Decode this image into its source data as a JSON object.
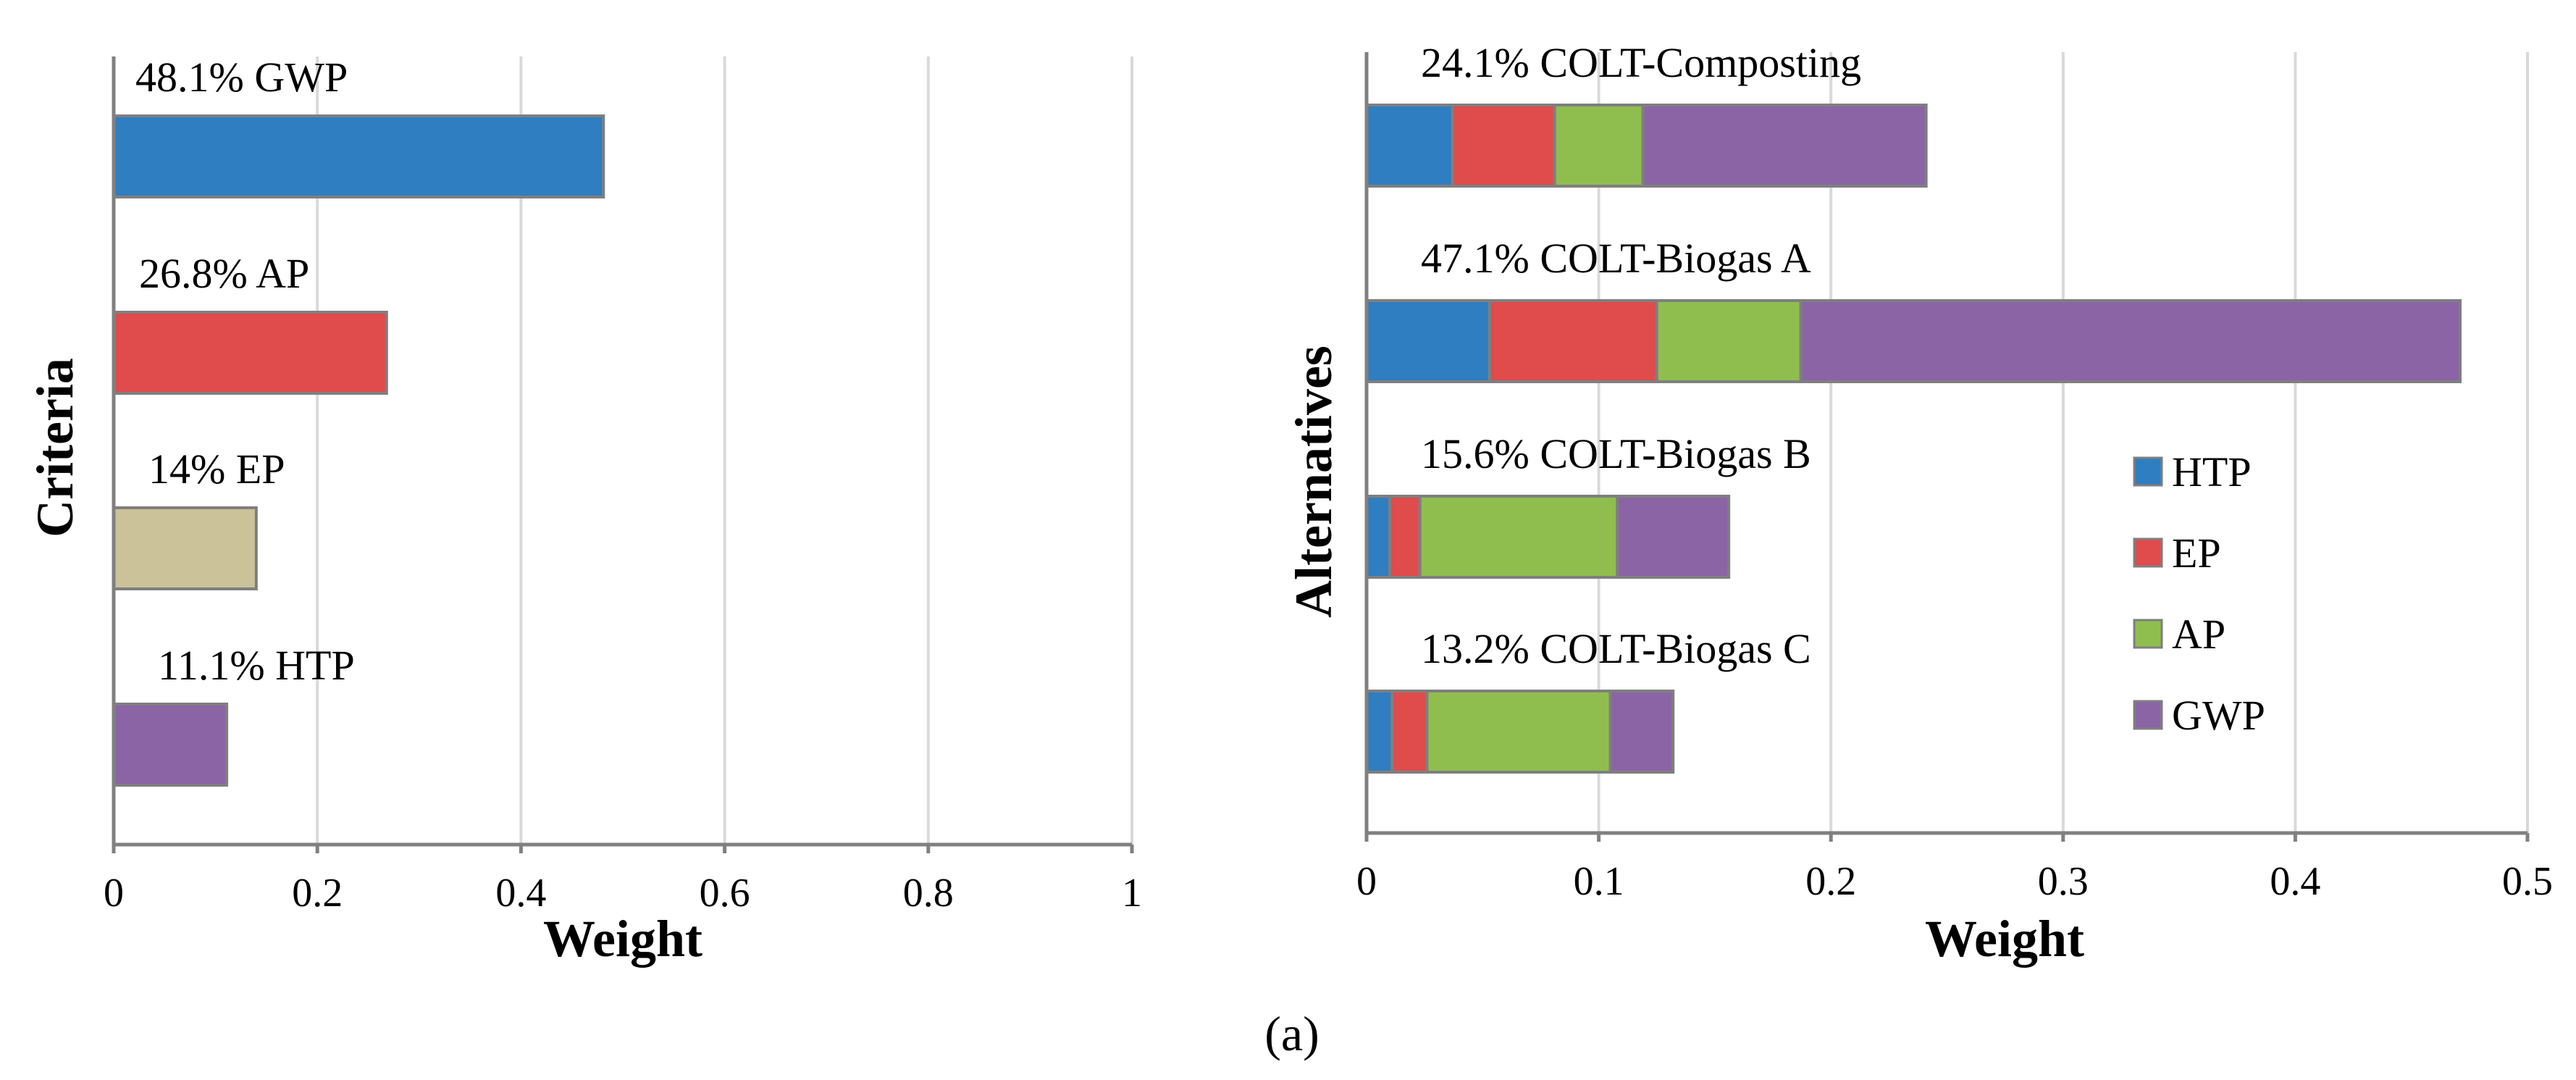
{
  "chart_data": [
    {
      "type": "bar",
      "orientation": "horizontal",
      "ylabel": "Criteria",
      "xlabel": "Weight",
      "xlim": [
        0,
        1
      ],
      "xticks": [
        "0",
        "0.2",
        "0.4",
        "0.6",
        "0.8",
        "1"
      ],
      "xtick_values": [
        0,
        0.2,
        0.4,
        0.6,
        0.8,
        1
      ],
      "grid": true,
      "categories": [
        "GWP",
        "AP",
        "EP",
        "HTP"
      ],
      "values": [
        0.481,
        0.268,
        0.14,
        0.111
      ],
      "colors": [
        "#2E7EC1",
        "#E04B4C",
        "#CBC299",
        "#8B64A6"
      ],
      "labels": [
        "48.1% GWP",
        "26.8% AP",
        "14% EP",
        "11.1% HTP"
      ]
    },
    {
      "type": "bar",
      "orientation": "horizontal",
      "stacked": true,
      "ylabel": "Alternatives",
      "xlabel": "Weight",
      "xlim": [
        0,
        0.5
      ],
      "xticks": [
        "0",
        "0.1",
        "0.2",
        "0.3",
        "0.4",
        "0.5"
      ],
      "xtick_values": [
        0,
        0.1,
        0.2,
        0.3,
        0.4,
        0.5
      ],
      "grid": true,
      "legend_position": "right",
      "categories": [
        "COLT-Composting",
        "COLT-Biogas A",
        "COLT-Biogas B",
        "COLT-Biogas C"
      ],
      "labels": [
        "24.1% COLT-Composting",
        "47.1% COLT-Biogas A",
        "15.6% COLT-Biogas B",
        "13.2% COLT-Biogas C"
      ],
      "series": [
        {
          "name": "HTP",
          "color": "#2E7EC1",
          "values": [
            0.037,
            0.053,
            0.01,
            0.011
          ]
        },
        {
          "name": "EP",
          "color": "#E04B4C",
          "values": [
            0.044,
            0.072,
            0.013,
            0.015
          ]
        },
        {
          "name": "AP",
          "color": "#8FBE4F",
          "values": [
            0.038,
            0.062,
            0.085,
            0.079
          ]
        },
        {
          "name": "GWP",
          "color": "#8B64A6",
          "values": [
            0.122,
            0.284,
            0.048,
            0.027
          ]
        }
      ]
    }
  ],
  "caption": "(a)",
  "colors": {
    "bar_border": "#7F7F7F",
    "axis": "#808080",
    "grid": "#D9D9D9"
  }
}
